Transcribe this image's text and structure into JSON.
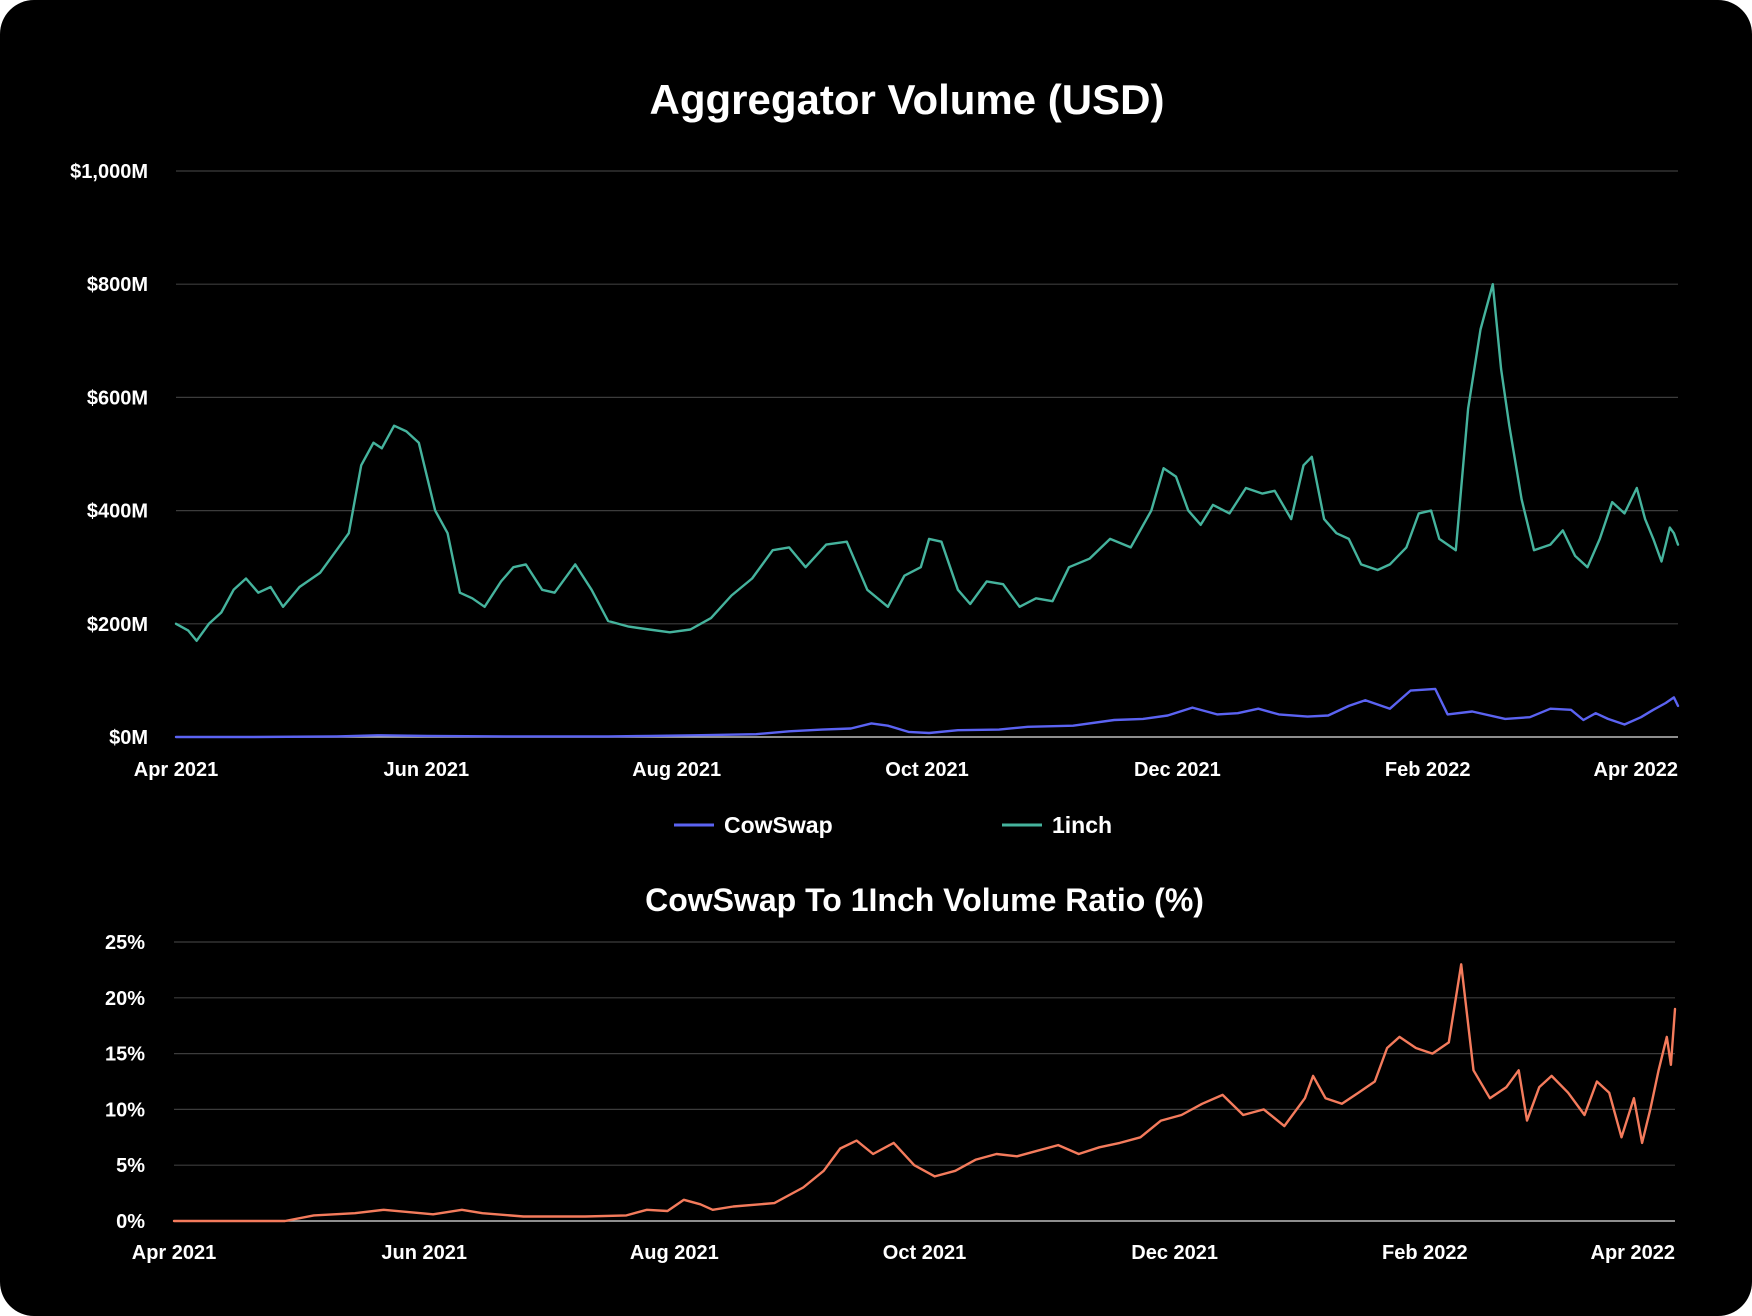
{
  "chart_data": [
    {
      "type": "line",
      "title": "Aggregator Volume (USD)",
      "xlabel": "",
      "ylabel": "",
      "x_ticks": [
        "Apr 2021",
        "Jun 2021",
        "Aug 2021",
        "Oct 2021",
        "Dec 2021",
        "Feb 2022",
        "Apr 2022"
      ],
      "y_ticks": [
        "$0M",
        "$200M",
        "$400M",
        "$600M",
        "$800M",
        "$1,000M"
      ],
      "ylim": [
        0,
        1000
      ],
      "xlim": [
        "2021-04-01",
        "2022-04-01"
      ],
      "grid": true,
      "legend": "bottom",
      "series": [
        {
          "name": "CowSwap",
          "color": "#5b63f2",
          "points": [
            [
              "2021-04-01",
              0
            ],
            [
              "2021-04-20",
              0
            ],
            [
              "2021-05-10",
              1
            ],
            [
              "2021-05-20",
              3
            ],
            [
              "2021-06-01",
              2
            ],
            [
              "2021-06-20",
              1
            ],
            [
              "2021-07-15",
              1
            ],
            [
              "2021-07-25",
              2
            ],
            [
              "2021-08-05",
              3
            ],
            [
              "2021-08-20",
              5
            ],
            [
              "2021-08-28",
              10
            ],
            [
              "2021-09-05",
              13
            ],
            [
              "2021-09-12",
              15
            ],
            [
              "2021-09-17",
              24
            ],
            [
              "2021-09-21",
              20
            ],
            [
              "2021-09-26",
              9
            ],
            [
              "2021-10-01",
              7
            ],
            [
              "2021-10-08",
              12
            ],
            [
              "2021-10-18",
              13
            ],
            [
              "2021-10-25",
              18
            ],
            [
              "2021-11-05",
              20
            ],
            [
              "2021-11-15",
              30
            ],
            [
              "2021-11-22",
              32
            ],
            [
              "2021-11-28",
              38
            ],
            [
              "2021-12-04",
              52
            ],
            [
              "2021-12-10",
              40
            ],
            [
              "2021-12-15",
              42
            ],
            [
              "2021-12-20",
              50
            ],
            [
              "2021-12-25",
              40
            ],
            [
              "2022-01-01",
              36
            ],
            [
              "2022-01-06",
              38
            ],
            [
              "2022-01-11",
              55
            ],
            [
              "2022-01-15",
              65
            ],
            [
              "2022-01-21",
              50
            ],
            [
              "2022-01-26",
              82
            ],
            [
              "2022-02-01",
              85
            ],
            [
              "2022-02-04",
              40
            ],
            [
              "2022-02-10",
              45
            ],
            [
              "2022-02-18",
              32
            ],
            [
              "2022-02-24",
              35
            ],
            [
              "2022-03-01",
              50
            ],
            [
              "2022-03-06",
              48
            ],
            [
              "2022-03-09",
              30
            ],
            [
              "2022-03-12",
              42
            ],
            [
              "2022-03-15",
              32
            ],
            [
              "2022-03-19",
              22
            ],
            [
              "2022-03-23",
              35
            ],
            [
              "2022-03-26",
              48
            ],
            [
              "2022-03-29",
              60
            ],
            [
              "2022-03-31",
              70
            ],
            [
              "2022-04-01",
              55
            ]
          ]
        },
        {
          "name": "1inch",
          "color": "#45b39d",
          "points": [
            [
              "2021-04-01",
              200
            ],
            [
              "2021-04-04",
              188
            ],
            [
              "2021-04-06",
              170
            ],
            [
              "2021-04-09",
              200
            ],
            [
              "2021-04-12",
              220
            ],
            [
              "2021-04-15",
              260
            ],
            [
              "2021-04-18",
              280
            ],
            [
              "2021-04-21",
              255
            ],
            [
              "2021-04-24",
              265
            ],
            [
              "2021-04-27",
              230
            ],
            [
              "2021-05-01",
              265
            ],
            [
              "2021-05-06",
              290
            ],
            [
              "2021-05-11",
              340
            ],
            [
              "2021-05-13",
              360
            ],
            [
              "2021-05-16",
              480
            ],
            [
              "2021-05-19",
              520
            ],
            [
              "2021-05-21",
              510
            ],
            [
              "2021-05-24",
              550
            ],
            [
              "2021-05-27",
              540
            ],
            [
              "2021-05-30",
              520
            ],
            [
              "2021-06-03",
              400
            ],
            [
              "2021-06-06",
              360
            ],
            [
              "2021-06-09",
              255
            ],
            [
              "2021-06-12",
              245
            ],
            [
              "2021-06-15",
              230
            ],
            [
              "2021-06-19",
              275
            ],
            [
              "2021-06-22",
              300
            ],
            [
              "2021-06-25",
              305
            ],
            [
              "2021-06-29",
              260
            ],
            [
              "2021-07-02",
              255
            ],
            [
              "2021-07-07",
              305
            ],
            [
              "2021-07-11",
              260
            ],
            [
              "2021-07-15",
              205
            ],
            [
              "2021-07-20",
              195
            ],
            [
              "2021-07-25",
              190
            ],
            [
              "2021-07-30",
              185
            ],
            [
              "2021-08-04",
              190
            ],
            [
              "2021-08-09",
              210
            ],
            [
              "2021-08-14",
              250
            ],
            [
              "2021-08-19",
              280
            ],
            [
              "2021-08-24",
              330
            ],
            [
              "2021-08-28",
              335
            ],
            [
              "2021-09-01",
              300
            ],
            [
              "2021-09-06",
              340
            ],
            [
              "2021-09-11",
              345
            ],
            [
              "2021-09-16",
              260
            ],
            [
              "2021-09-21",
              230
            ],
            [
              "2021-09-25",
              285
            ],
            [
              "2021-09-29",
              300
            ],
            [
              "2021-10-01",
              350
            ],
            [
              "2021-10-04",
              345
            ],
            [
              "2021-10-08",
              260
            ],
            [
              "2021-10-11",
              235
            ],
            [
              "2021-10-15",
              275
            ],
            [
              "2021-10-19",
              270
            ],
            [
              "2021-10-23",
              230
            ],
            [
              "2021-10-27",
              245
            ],
            [
              "2021-10-31",
              240
            ],
            [
              "2021-11-04",
              300
            ],
            [
              "2021-11-09",
              315
            ],
            [
              "2021-11-14",
              350
            ],
            [
              "2021-11-19",
              335
            ],
            [
              "2021-11-24",
              400
            ],
            [
              "2021-11-27",
              475
            ],
            [
              "2021-11-30",
              460
            ],
            [
              "2021-12-03",
              400
            ],
            [
              "2021-12-06",
              375
            ],
            [
              "2021-12-09",
              410
            ],
            [
              "2021-12-13",
              395
            ],
            [
              "2021-12-17",
              440
            ],
            [
              "2021-12-21",
              430
            ],
            [
              "2021-12-24",
              435
            ],
            [
              "2021-12-28",
              385
            ],
            [
              "2021-12-31",
              480
            ],
            [
              "2022-01-02",
              495
            ],
            [
              "2022-01-05",
              385
            ],
            [
              "2022-01-08",
              360
            ],
            [
              "2022-01-11",
              350
            ],
            [
              "2022-01-14",
              305
            ],
            [
              "2022-01-18",
              295
            ],
            [
              "2022-01-21",
              305
            ],
            [
              "2022-01-25",
              335
            ],
            [
              "2022-01-28",
              395
            ],
            [
              "2022-01-31",
              400
            ],
            [
              "2022-02-02",
              350
            ],
            [
              "2022-02-06",
              330
            ],
            [
              "2022-02-09",
              580
            ],
            [
              "2022-02-12",
              720
            ],
            [
              "2022-02-15",
              800
            ],
            [
              "2022-02-17",
              650
            ],
            [
              "2022-02-19",
              550
            ],
            [
              "2022-02-22",
              420
            ],
            [
              "2022-02-25",
              330
            ],
            [
              "2022-03-01",
              340
            ],
            [
              "2022-03-04",
              365
            ],
            [
              "2022-03-07",
              320
            ],
            [
              "2022-03-10",
              300
            ],
            [
              "2022-03-13",
              350
            ],
            [
              "2022-03-16",
              415
            ],
            [
              "2022-03-19",
              395
            ],
            [
              "2022-03-22",
              440
            ],
            [
              "2022-03-24",
              385
            ],
            [
              "2022-03-26",
              350
            ],
            [
              "2022-03-28",
              310
            ],
            [
              "2022-03-29",
              340
            ],
            [
              "2022-03-30",
              370
            ],
            [
              "2022-03-31",
              360
            ],
            [
              "2022-04-01",
              340
            ]
          ]
        }
      ]
    },
    {
      "type": "line",
      "title": "CowSwap To 1Inch Volume Ratio (%)",
      "xlabel": "",
      "ylabel": "",
      "x_ticks": [
        "Apr 2021",
        "Jun 2021",
        "Aug 2021",
        "Oct 2021",
        "Dec 2021",
        "Feb 2022",
        "Apr 2022"
      ],
      "y_ticks": [
        "0%",
        "5%",
        "10%",
        "15%",
        "20%",
        "25%"
      ],
      "ylim": [
        0,
        25
      ],
      "xlim": [
        "2021-04-01",
        "2022-04-01"
      ],
      "grid": true,
      "series": [
        {
          "color": "#f47b5c",
          "points": [
            [
              "2021-04-01",
              0
            ],
            [
              "2021-04-28",
              0
            ],
            [
              "2021-05-05",
              0.5
            ],
            [
              "2021-05-15",
              0.7
            ],
            [
              "2021-05-22",
              1.0
            ],
            [
              "2021-05-28",
              0.8
            ],
            [
              "2021-06-03",
              0.6
            ],
            [
              "2021-06-10",
              1.0
            ],
            [
              "2021-06-15",
              0.7
            ],
            [
              "2021-06-25",
              0.4
            ],
            [
              "2021-07-10",
              0.4
            ],
            [
              "2021-07-20",
              0.5
            ],
            [
              "2021-07-25",
              1.0
            ],
            [
              "2021-07-30",
              0.9
            ],
            [
              "2021-08-03",
              1.9
            ],
            [
              "2021-08-07",
              1.5
            ],
            [
              "2021-08-10",
              1.0
            ],
            [
              "2021-08-15",
              1.3
            ],
            [
              "2021-08-25",
              1.6
            ],
            [
              "2021-09-01",
              3.0
            ],
            [
              "2021-09-06",
              4.5
            ],
            [
              "2021-09-10",
              6.5
            ],
            [
              "2021-09-14",
              7.2
            ],
            [
              "2021-09-18",
              6.0
            ],
            [
              "2021-09-23",
              7.0
            ],
            [
              "2021-09-28",
              5.0
            ],
            [
              "2021-10-03",
              4.0
            ],
            [
              "2021-10-08",
              4.5
            ],
            [
              "2021-10-13",
              5.5
            ],
            [
              "2021-10-18",
              6.0
            ],
            [
              "2021-10-23",
              5.8
            ],
            [
              "2021-10-28",
              6.3
            ],
            [
              "2021-11-02",
              6.8
            ],
            [
              "2021-11-07",
              6.0
            ],
            [
              "2021-11-12",
              6.6
            ],
            [
              "2021-11-17",
              7.0
            ],
            [
              "2021-11-22",
              7.5
            ],
            [
              "2021-11-27",
              9.0
            ],
            [
              "2021-12-02",
              9.5
            ],
            [
              "2021-12-07",
              10.5
            ],
            [
              "2021-12-12",
              11.3
            ],
            [
              "2021-12-17",
              9.5
            ],
            [
              "2021-12-22",
              10.0
            ],
            [
              "2021-12-27",
              8.5
            ],
            [
              "2022-01-01",
              11.0
            ],
            [
              "2022-01-03",
              13.0
            ],
            [
              "2022-01-06",
              11.0
            ],
            [
              "2022-01-10",
              10.5
            ],
            [
              "2022-01-14",
              11.5
            ],
            [
              "2022-01-18",
              12.5
            ],
            [
              "2022-01-21",
              15.5
            ],
            [
              "2022-01-24",
              16.5
            ],
            [
              "2022-01-28",
              15.5
            ],
            [
              "2022-02-01",
              15.0
            ],
            [
              "2022-02-05",
              16.0
            ],
            [
              "2022-02-08",
              23.0
            ],
            [
              "2022-02-11",
              13.5
            ],
            [
              "2022-02-15",
              11.0
            ],
            [
              "2022-02-19",
              12.0
            ],
            [
              "2022-02-22",
              13.5
            ],
            [
              "2022-02-24",
              9.0
            ],
            [
              "2022-02-27",
              12.0
            ],
            [
              "2022-03-02",
              13.0
            ],
            [
              "2022-03-06",
              11.5
            ],
            [
              "2022-03-10",
              9.5
            ],
            [
              "2022-03-13",
              12.5
            ],
            [
              "2022-03-16",
              11.5
            ],
            [
              "2022-03-19",
              7.5
            ],
            [
              "2022-03-22",
              11.0
            ],
            [
              "2022-03-24",
              7.0
            ],
            [
              "2022-03-26",
              10.0
            ],
            [
              "2022-03-28",
              13.5
            ],
            [
              "2022-03-30",
              16.5
            ],
            [
              "2022-03-31",
              14.0
            ],
            [
              "2022-04-01",
              19.0
            ]
          ]
        }
      ]
    }
  ]
}
